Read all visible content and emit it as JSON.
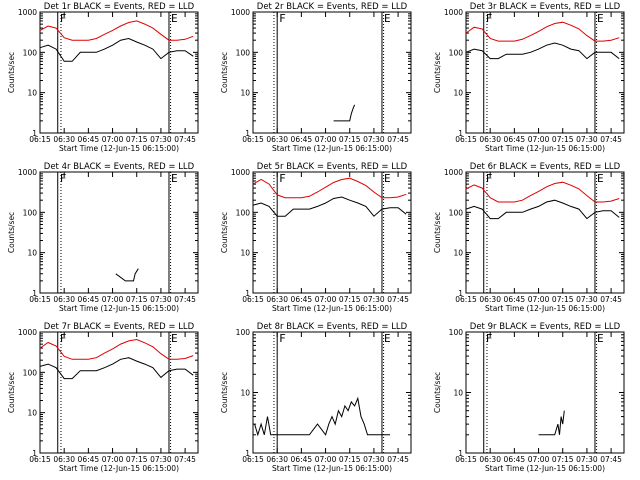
{
  "figure": {
    "colors": {
      "events": "#000000",
      "lld": "#e00000",
      "axes": "#000000",
      "background": "#ffffff"
    },
    "y_ticks": [
      "1",
      "10",
      "100",
      "1000"
    ],
    "x_ticks": [
      "06:15",
      "06:30",
      "06:45",
      "07:00",
      "07:15",
      "07:30",
      "07:45"
    ],
    "y_label": "Counts/sec",
    "x_label": "Start Time (12-Jun-15 06:15:00)",
    "marker_left": "F",
    "marker_right": "E"
  },
  "chart_data": [
    {
      "type": "line",
      "title": "Det 1r BLACK = Events, RED = LLD",
      "ylabel": "Counts/sec",
      "xlabel": "Start Time (12-Jun-15 06:15:00)",
      "y_scale": "log",
      "ylim": [
        1,
        1000
      ],
      "xlim": [
        "06:15",
        "07:53"
      ],
      "grid": false,
      "vertical_markers": [
        {
          "time": "06:26",
          "label": "F"
        },
        {
          "time": "07:35",
          "label": "E"
        }
      ],
      "dotted_lines": [
        "06:28",
        "07:36"
      ],
      "series": [
        {
          "name": "BLACK = Events",
          "color": "#000000",
          "x": [
            "06:15",
            "06:20",
            "06:25",
            "06:30",
            "06:35",
            "06:40",
            "06:45",
            "06:50",
            "06:55",
            "07:00",
            "07:05",
            "07:10",
            "07:15",
            "07:20",
            "07:25",
            "07:30",
            "07:35",
            "07:40",
            "07:45",
            "07:50"
          ],
          "values": [
            130,
            150,
            120,
            60,
            60,
            100,
            100,
            100,
            120,
            150,
            200,
            220,
            180,
            150,
            120,
            70,
            100,
            110,
            110,
            80
          ]
        },
        {
          "name": "RED = LLD",
          "color": "#e00000",
          "x": [
            "06:15",
            "06:20",
            "06:25",
            "06:30",
            "06:35",
            "06:40",
            "06:45",
            "06:50",
            "06:55",
            "07:00",
            "07:05",
            "07:10",
            "07:15",
            "07:20",
            "07:25",
            "07:30",
            "07:35",
            "07:40",
            "07:45",
            "07:50"
          ],
          "values": [
            350,
            450,
            400,
            230,
            200,
            200,
            200,
            220,
            280,
            350,
            450,
            550,
            600,
            500,
            400,
            280,
            200,
            200,
            210,
            250
          ]
        }
      ]
    },
    {
      "type": "line",
      "title": "Det 2r BLACK = Events, RED = LLD",
      "ylabel": "Counts/sec",
      "xlabel": "Start Time (12-Jun-15 06:15:00)",
      "y_scale": "log",
      "ylim": [
        1,
        1000
      ],
      "xlim": [
        "06:15",
        "07:53"
      ],
      "grid": false,
      "vertical_markers": [
        {
          "time": "06:30",
          "label": "F"
        },
        {
          "time": "07:35",
          "label": "E"
        }
      ],
      "dotted_lines": [
        "06:28",
        "07:36"
      ],
      "series": [
        {
          "name": "BLACK = Events",
          "color": "#000000",
          "x": [
            "07:05",
            "07:15",
            "07:16",
            "07:17",
            "07:18"
          ],
          "values": [
            2,
            2,
            3,
            4,
            5
          ]
        }
      ]
    },
    {
      "type": "line",
      "title": "Det 3r BLACK = Events, RED = LLD",
      "ylabel": "Counts/sec",
      "xlabel": "Start Time (12-Jun-15 06:15:00)",
      "y_scale": "log",
      "ylim": [
        1,
        1000
      ],
      "xlim": [
        "06:15",
        "07:53"
      ],
      "grid": false,
      "vertical_markers": [
        {
          "time": "06:26",
          "label": "F"
        },
        {
          "time": "07:35",
          "label": "E"
        }
      ],
      "dotted_lines": [
        "06:28",
        "07:36"
      ],
      "series": [
        {
          "name": "BLACK = Events",
          "color": "#000000",
          "x": [
            "06:15",
            "06:20",
            "06:25",
            "06:30",
            "06:35",
            "06:40",
            "06:45",
            "06:50",
            "06:55",
            "07:00",
            "07:05",
            "07:10",
            "07:15",
            "07:20",
            "07:25",
            "07:30",
            "07:35",
            "07:40",
            "07:45",
            "07:50"
          ],
          "values": [
            100,
            120,
            110,
            70,
            70,
            90,
            90,
            90,
            100,
            120,
            150,
            170,
            150,
            120,
            110,
            70,
            100,
            100,
            100,
            70
          ]
        },
        {
          "name": "RED = LLD",
          "color": "#e00000",
          "x": [
            "06:15",
            "06:20",
            "06:25",
            "06:30",
            "06:35",
            "06:40",
            "06:45",
            "06:50",
            "06:55",
            "07:00",
            "07:05",
            "07:10",
            "07:15",
            "07:20",
            "07:25",
            "07:30",
            "07:35",
            "07:40",
            "07:45",
            "07:50"
          ],
          "values": [
            300,
            420,
            380,
            220,
            190,
            190,
            190,
            210,
            260,
            330,
            430,
            520,
            560,
            470,
            380,
            260,
            190,
            190,
            200,
            230
          ]
        }
      ]
    },
    {
      "type": "line",
      "title": "Det 4r BLACK = Events, RED = LLD",
      "ylabel": "Counts/sec",
      "xlabel": "Start Time (12-Jun-15 06:15:00)",
      "y_scale": "log",
      "ylim": [
        1,
        1000
      ],
      "xlim": [
        "06:15",
        "07:53"
      ],
      "grid": false,
      "vertical_markers": [
        {
          "time": "06:26",
          "label": "F"
        },
        {
          "time": "07:35",
          "label": "E"
        }
      ],
      "dotted_lines": [
        "06:28",
        "07:36"
      ],
      "series": [
        {
          "name": "BLACK = Events",
          "color": "#000000",
          "x": [
            "07:02",
            "07:08",
            "07:13",
            "07:14",
            "07:16"
          ],
          "values": [
            3,
            2,
            2,
            3,
            4
          ]
        }
      ]
    },
    {
      "type": "line",
      "title": "Det 5r BLACK = Events, RED = LLD",
      "ylabel": "Counts/sec",
      "xlabel": "Start Time (12-Jun-15 06:15:00)",
      "y_scale": "log",
      "ylim": [
        1,
        1000
      ],
      "xlim": [
        "06:15",
        "07:53"
      ],
      "grid": false,
      "vertical_markers": [
        {
          "time": "06:30",
          "label": "F"
        },
        {
          "time": "07:35",
          "label": "E"
        }
      ],
      "dotted_lines": [
        "06:28",
        "07:36"
      ],
      "series": [
        {
          "name": "BLACK = Events",
          "color": "#000000",
          "x": [
            "06:15",
            "06:20",
            "06:25",
            "06:30",
            "06:35",
            "06:40",
            "06:45",
            "06:50",
            "06:55",
            "07:00",
            "07:05",
            "07:10",
            "07:15",
            "07:20",
            "07:25",
            "07:30",
            "07:35",
            "07:40",
            "07:45",
            "07:50"
          ],
          "values": [
            150,
            170,
            140,
            80,
            80,
            120,
            120,
            120,
            140,
            170,
            220,
            240,
            200,
            170,
            140,
            80,
            120,
            130,
            130,
            90
          ]
        },
        {
          "name": "RED = LLD",
          "color": "#e00000",
          "x": [
            "06:15",
            "06:20",
            "06:25",
            "06:30",
            "06:35",
            "06:40",
            "06:45",
            "06:50",
            "06:55",
            "07:00",
            "07:05",
            "07:10",
            "07:15",
            "07:20",
            "07:25",
            "07:30",
            "07:35",
            "07:40",
            "07:45",
            "07:50"
          ],
          "values": [
            500,
            650,
            500,
            270,
            230,
            230,
            230,
            250,
            320,
            420,
            550,
            650,
            700,
            580,
            460,
            320,
            230,
            230,
            240,
            280
          ]
        }
      ]
    },
    {
      "type": "line",
      "title": "Det 6r BLACK = Events, RED = LLD",
      "ylabel": "Counts/sec",
      "xlabel": "Start Time (12-Jun-15 06:15:00)",
      "y_scale": "log",
      "ylim": [
        1,
        1000
      ],
      "xlim": [
        "06:15",
        "07:53"
      ],
      "grid": false,
      "vertical_markers": [
        {
          "time": "06:26",
          "label": "F"
        },
        {
          "time": "07:35",
          "label": "E"
        }
      ],
      "dotted_lines": [
        "06:28",
        "07:36"
      ],
      "series": [
        {
          "name": "BLACK = Events",
          "color": "#000000",
          "x": [
            "06:15",
            "06:20",
            "06:25",
            "06:30",
            "06:35",
            "06:40",
            "06:45",
            "06:50",
            "06:55",
            "07:00",
            "07:05",
            "07:10",
            "07:15",
            "07:20",
            "07:25",
            "07:30",
            "07:35",
            "07:40",
            "07:45",
            "07:50"
          ],
          "values": [
            120,
            140,
            120,
            70,
            70,
            100,
            100,
            100,
            120,
            140,
            180,
            200,
            170,
            140,
            120,
            70,
            100,
            110,
            110,
            75
          ]
        },
        {
          "name": "RED = LLD",
          "color": "#e00000",
          "x": [
            "06:15",
            "06:20",
            "06:25",
            "06:30",
            "06:35",
            "06:40",
            "06:45",
            "06:50",
            "06:55",
            "07:00",
            "07:05",
            "07:10",
            "07:15",
            "07:20",
            "07:25",
            "07:30",
            "07:35",
            "07:40",
            "07:45",
            "07:50"
          ],
          "values": [
            380,
            480,
            400,
            230,
            180,
            180,
            180,
            200,
            260,
            330,
            430,
            520,
            560,
            470,
            380,
            260,
            180,
            180,
            190,
            220
          ]
        }
      ]
    },
    {
      "type": "line",
      "title": "Det 7r BLACK = Events, RED = LLD",
      "ylabel": "Counts/sec",
      "xlabel": "Start Time (12-Jun-15 06:15:00)",
      "y_scale": "log",
      "ylim": [
        1,
        1000
      ],
      "xlim": [
        "06:15",
        "07:53"
      ],
      "grid": false,
      "vertical_markers": [
        {
          "time": "06:26",
          "label": "F"
        },
        {
          "time": "07:35",
          "label": "E"
        }
      ],
      "dotted_lines": [
        "06:28",
        "07:36"
      ],
      "series": [
        {
          "name": "BLACK = Events",
          "color": "#000000",
          "x": [
            "06:15",
            "06:20",
            "06:25",
            "06:30",
            "06:35",
            "06:40",
            "06:45",
            "06:50",
            "06:55",
            "07:00",
            "07:05",
            "07:10",
            "07:15",
            "07:20",
            "07:25",
            "07:30",
            "07:35",
            "07:40",
            "07:45",
            "07:50"
          ],
          "values": [
            140,
            160,
            130,
            70,
            70,
            110,
            110,
            110,
            130,
            160,
            210,
            230,
            190,
            160,
            130,
            75,
            110,
            120,
            120,
            85
          ]
        },
        {
          "name": "RED = LLD",
          "color": "#e00000",
          "x": [
            "06:15",
            "06:20",
            "06:25",
            "06:30",
            "06:35",
            "06:40",
            "06:45",
            "06:50",
            "06:55",
            "07:00",
            "07:05",
            "07:10",
            "07:15",
            "07:20",
            "07:25",
            "07:30",
            "07:35",
            "07:40",
            "07:45",
            "07:50"
          ],
          "values": [
            400,
            550,
            450,
            250,
            210,
            210,
            210,
            230,
            300,
            380,
            500,
            600,
            650,
            540,
            430,
            290,
            210,
            210,
            220,
            260
          ]
        }
      ]
    },
    {
      "type": "line",
      "title": "Det 8r BLACK = Events, RED = LLD",
      "ylabel": "Counts/sec",
      "xlabel": "Start Time (12-Jun-15 06:15:00)",
      "y_scale": "log",
      "ylim": [
        1,
        100
      ],
      "xlim": [
        "06:15",
        "07:53"
      ],
      "grid": false,
      "vertical_markers": [
        {
          "time": "06:30",
          "label": "F"
        },
        {
          "time": "07:35",
          "label": "E"
        }
      ],
      "dotted_lines": [
        "06:28",
        "07:36"
      ],
      "series": [
        {
          "name": "BLACK = Events",
          "color": "#000000",
          "x": [
            "06:16",
            "06:18",
            "06:20",
            "06:22",
            "06:24",
            "06:26",
            "06:35",
            "06:40",
            "06:45",
            "06:50",
            "06:55",
            "07:00",
            "07:02",
            "07:04",
            "07:06",
            "07:08",
            "07:10",
            "07:12",
            "07:14",
            "07:16",
            "07:18",
            "07:20",
            "07:22",
            "07:24",
            "07:26",
            "07:30",
            "07:40"
          ],
          "values": [
            3,
            2,
            3,
            2,
            4,
            2,
            2,
            2,
            2,
            2,
            3,
            2,
            3,
            4,
            3,
            5,
            4,
            6,
            5,
            7,
            6,
            8,
            4,
            3,
            2,
            2,
            2
          ]
        }
      ]
    },
    {
      "type": "line",
      "title": "Det 9r BLACK = Events, RED = LLD",
      "ylabel": "Counts/sec",
      "xlabel": "Start Time (12-Jun-15 06:15:00)",
      "y_scale": "log",
      "ylim": [
        1,
        100
      ],
      "xlim": [
        "06:15",
        "07:53"
      ],
      "grid": false,
      "vertical_markers": [
        {
          "time": "06:26",
          "label": "F"
        },
        {
          "time": "07:35",
          "label": "E"
        }
      ],
      "dotted_lines": [
        "06:28",
        "07:36"
      ],
      "series": [
        {
          "name": "BLACK = Events",
          "color": "#000000",
          "x": [
            "07:00",
            "07:10",
            "07:12",
            "07:13",
            "07:14",
            "07:15",
            "07:16"
          ],
          "values": [
            2,
            2,
            3,
            2,
            4,
            3,
            5
          ]
        }
      ]
    }
  ]
}
